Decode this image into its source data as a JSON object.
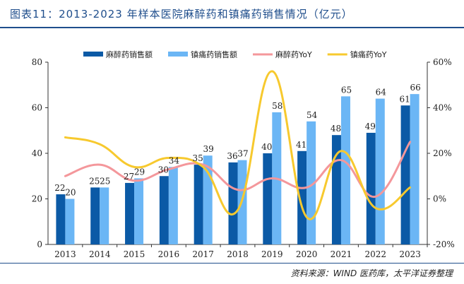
{
  "header": {
    "title": "图表11：2013-2023 年样本医院麻醉药和镇痛药销售情况（亿元）"
  },
  "footer": {
    "source": "资料来源：WIND 医药库，太平洋证券整理"
  },
  "colors": {
    "accent": "#1f4e8c",
    "anesthetic_bar": "#0b5aa6",
    "analgesic_bar": "#6bb6f5",
    "anesthetic_yoy": "#f4979b",
    "analgesic_yoy": "#f7c92e"
  },
  "chart_data": {
    "type": "bar",
    "title": "",
    "categories": [
      "2013",
      "2014",
      "2015",
      "2016",
      "2017",
      "2018",
      "2019",
      "2020",
      "2021",
      "2022",
      "2023"
    ],
    "series": [
      {
        "name": "麻醉药销售额",
        "type": "bar",
        "axis": "left",
        "values": [
          22,
          25,
          27,
          30,
          35,
          36,
          40,
          41,
          48,
          49,
          61
        ]
      },
      {
        "name": "镇痛药销售额",
        "type": "bar",
        "axis": "left",
        "values": [
          20,
          25,
          29,
          34,
          39,
          37,
          58,
          54,
          65,
          64,
          66
        ]
      },
      {
        "name": "麻醉药YoY",
        "type": "line",
        "axis": "right",
        "values": [
          10,
          15,
          8,
          13,
          15,
          4,
          9,
          5,
          17,
          1,
          25
        ]
      },
      {
        "name": "镇痛药YoY",
        "type": "line",
        "axis": "right",
        "values": [
          27,
          24,
          14,
          18,
          14,
          -5,
          56,
          -8,
          21,
          -4,
          5
        ]
      }
    ],
    "left_axis": {
      "min": 0,
      "max": 80,
      "step": 20,
      "ticks": [
        "0",
        "20",
        "40",
        "60",
        "80"
      ]
    },
    "right_axis": {
      "min": -20,
      "max": 60,
      "step": 20,
      "ticks": [
        "-20%",
        "0%",
        "20%",
        "40%",
        "60%"
      ]
    },
    "xlabel": "",
    "ylabel": "",
    "legend_position": "top",
    "grid": false
  }
}
